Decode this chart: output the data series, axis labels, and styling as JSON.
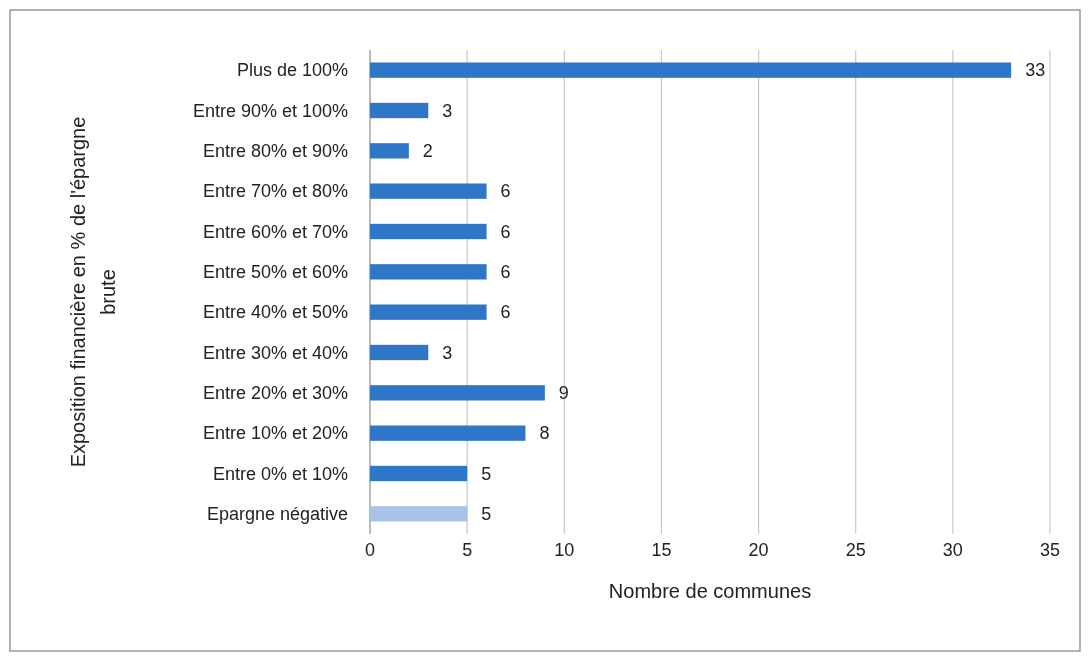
{
  "chart_data": {
    "type": "bar",
    "orientation": "horizontal",
    "xlabel": "Nombre de communes",
    "ylabel": "Exposition financière en % de l'épargne brute",
    "categories": [
      "Plus de 100%",
      "Entre 90% et 100%",
      "Entre 80% et 90%",
      "Entre 70% et 80%",
      "Entre 60% et 70%",
      "Entre 50% et 60%",
      "Entre 40% et 50%",
      "Entre 30% et 40%",
      "Entre 20% et 30%",
      "Entre 10% et 20%",
      "Entre 0% et 10%",
      "Epargne négative"
    ],
    "values": [
      33,
      3,
      2,
      6,
      6,
      6,
      6,
      3,
      9,
      8,
      5,
      5
    ],
    "colors": [
      "#2f75c8",
      "#2f75c8",
      "#2f75c8",
      "#2f75c8",
      "#2f75c8",
      "#2f75c8",
      "#2f75c8",
      "#2f75c8",
      "#2f75c8",
      "#2f75c8",
      "#2f75c8",
      "#a8c3e6"
    ],
    "xlim": [
      0,
      35
    ],
    "xticks": [
      0,
      5,
      10,
      15,
      20,
      25,
      30,
      35
    ],
    "grid": "x",
    "data_labels": true
  }
}
